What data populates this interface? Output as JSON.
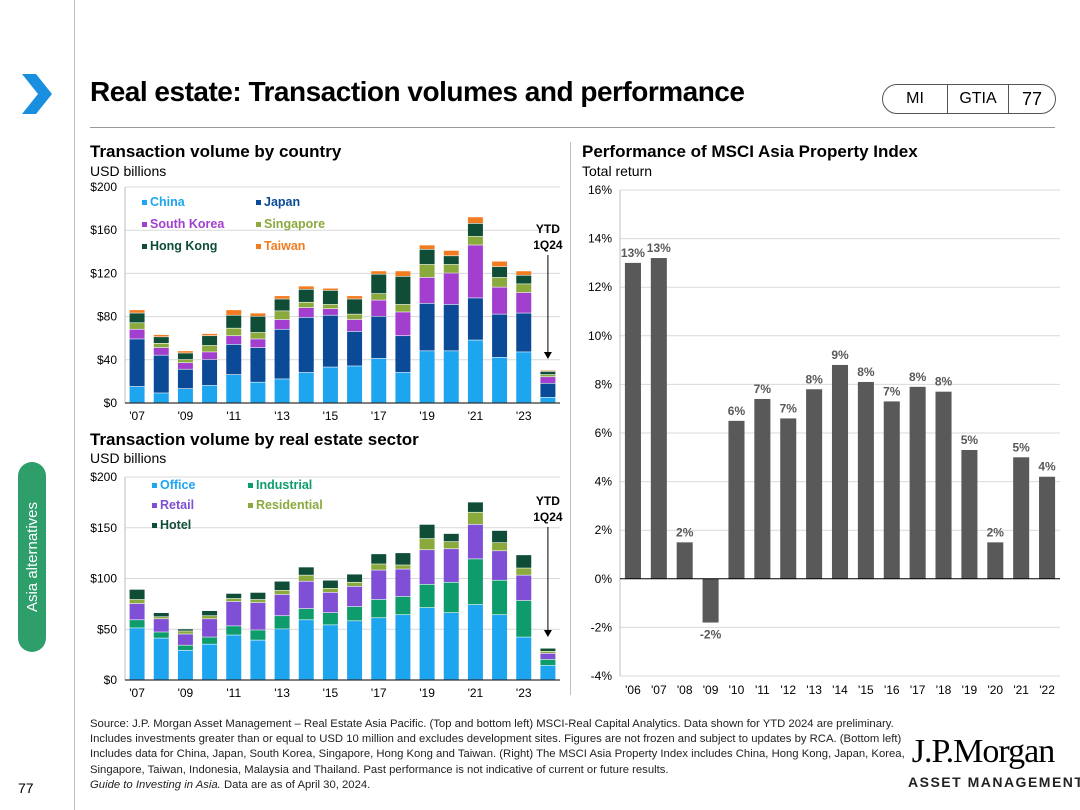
{
  "header": {
    "title": "Real estate: Transaction volumes and performance",
    "pill": [
      "MI",
      "GTIA",
      "77"
    ]
  },
  "sidebar": {
    "tab_label": "Asia alternatives",
    "page_number": "77"
  },
  "colors": {
    "china": "#1ea5f0",
    "japan": "#0b4a96",
    "south_korea": "#a33fcf",
    "singapore": "#8aaa3e",
    "hong_kong": "#0f4d36",
    "taiwan": "#f47c20",
    "office": "#1ea5f0",
    "industrial": "#0e9c6c",
    "retail": "#7f4fd6",
    "residential": "#8aaa3e",
    "hotel": "#0f4d36",
    "msci_bar": "#595959"
  },
  "chart_data": [
    {
      "id": "by_country",
      "type": "bar",
      "stacked": true,
      "title": "Transaction volume by country",
      "subtitle": "USD billions",
      "ylim": [
        0,
        200
      ],
      "yticks": [
        "$0",
        "$40",
        "$80",
        "$120",
        "$160",
        "$200"
      ],
      "ytick_values": [
        0,
        40,
        80,
        120,
        160,
        200
      ],
      "categories": [
        "'07",
        "'08",
        "'09",
        "'10",
        "'11",
        "'12",
        "'13",
        "'14",
        "'15",
        "'16",
        "'17",
        "'18",
        "'19",
        "'20",
        "'21",
        "'22",
        "'23",
        "YTD 1Q24"
      ],
      "xtick_labels": [
        "'07",
        "",
        "'09",
        "",
        "'11",
        "",
        "'13",
        "",
        "'15",
        "",
        "'17",
        "",
        "'19",
        "",
        "'21",
        "",
        "'23",
        ""
      ],
      "annotation": {
        "text_lines": [
          "YTD",
          "1Q24"
        ]
      },
      "series": [
        {
          "name": "China",
          "color_key": "china",
          "values": [
            15,
            9,
            13,
            16,
            26,
            19,
            22,
            28,
            33,
            34,
            41,
            28,
            48,
            48,
            58,
            42,
            47,
            5
          ]
        },
        {
          "name": "Japan",
          "color_key": "japan",
          "values": [
            44,
            35,
            18,
            24,
            28,
            32,
            46,
            51,
            48,
            32,
            39,
            34,
            44,
            43,
            39,
            40,
            36,
            13
          ]
        },
        {
          "name": "South Korea",
          "color_key": "south_korea",
          "values": [
            9,
            7,
            6,
            7,
            8,
            8,
            9,
            9,
            6,
            11,
            15,
            22,
            24,
            29,
            49,
            25,
            19,
            6
          ]
        },
        {
          "name": "Singapore",
          "color_key": "singapore",
          "values": [
            6,
            4,
            3,
            6,
            7,
            6,
            8,
            5,
            4,
            5,
            6,
            7,
            12,
            8,
            8,
            9,
            8,
            2
          ]
        },
        {
          "name": "Hong Kong",
          "color_key": "hong_kong",
          "values": [
            9,
            6,
            6,
            9,
            12,
            15,
            11,
            12,
            13,
            14,
            18,
            26,
            14,
            8,
            12,
            10,
            8,
            3
          ]
        },
        {
          "name": "Taiwan",
          "color_key": "taiwan",
          "values": [
            3,
            2,
            2,
            2,
            5,
            3,
            3,
            3,
            2,
            3,
            3,
            5,
            4,
            5,
            6,
            5,
            4,
            1
          ]
        }
      ]
    },
    {
      "id": "by_sector",
      "type": "bar",
      "stacked": true,
      "title": "Transaction volume by real estate sector",
      "subtitle": "USD billions",
      "ylim": [
        0,
        200
      ],
      "yticks": [
        "$0",
        "$50",
        "$100",
        "$150",
        "$200"
      ],
      "ytick_values": [
        0,
        50,
        100,
        150,
        200
      ],
      "categories": [
        "'07",
        "'08",
        "'09",
        "'10",
        "'11",
        "'12",
        "'13",
        "'14",
        "'15",
        "'16",
        "'17",
        "'18",
        "'19",
        "'20",
        "'21",
        "'22",
        "'23",
        "YTD 1Q24"
      ],
      "xtick_labels": [
        "'07",
        "",
        "'09",
        "",
        "'11",
        "",
        "'13",
        "",
        "'15",
        "",
        "'17",
        "",
        "'19",
        "",
        "'21",
        "",
        "'23",
        ""
      ],
      "annotation": {
        "text_lines": [
          "YTD",
          "1Q24"
        ]
      },
      "series": [
        {
          "name": "Office",
          "color_key": "office",
          "values": [
            51,
            41,
            29,
            35,
            44,
            39,
            50,
            59,
            54,
            58,
            61,
            64,
            71,
            66,
            74,
            64,
            42,
            14
          ]
        },
        {
          "name": "Industrial",
          "color_key": "industrial",
          "values": [
            8,
            6,
            5,
            7,
            9,
            10,
            13,
            11,
            12,
            14,
            18,
            18,
            23,
            30,
            45,
            34,
            36,
            6
          ]
        },
        {
          "name": "Retail",
          "color_key": "retail",
          "values": [
            16,
            13,
            11,
            18,
            24,
            27,
            21,
            27,
            20,
            20,
            29,
            27,
            34,
            33,
            34,
            29,
            25,
            6
          ]
        },
        {
          "name": "Residential",
          "color_key": "residential",
          "values": [
            4,
            2,
            3,
            3,
            3,
            3,
            4,
            6,
            4,
            4,
            6,
            4,
            11,
            7,
            12,
            8,
            7,
            2
          ]
        },
        {
          "name": "Hotel",
          "color_key": "hotel",
          "values": [
            10,
            4,
            2,
            5,
            5,
            7,
            9,
            8,
            8,
            8,
            10,
            12,
            14,
            8,
            10,
            12,
            13,
            3
          ]
        }
      ]
    },
    {
      "id": "msci_asia",
      "type": "bar",
      "title": "Performance of MSCI Asia Property Index",
      "subtitle": "Total return",
      "ylim": [
        -4,
        16
      ],
      "yticks": [
        "-4%",
        "-2%",
        "0%",
        "2%",
        "4%",
        "6%",
        "8%",
        "10%",
        "12%",
        "14%",
        "16%"
      ],
      "ytick_values": [
        -4,
        -2,
        0,
        2,
        4,
        6,
        8,
        10,
        12,
        14,
        16
      ],
      "categories": [
        "'06",
        "'07",
        "'08",
        "'09",
        "'10",
        "'11",
        "'12",
        "'13",
        "'14",
        "'15",
        "'16",
        "'17",
        "'18",
        "'19",
        "'20",
        "'21",
        "'22"
      ],
      "values": [
        13.0,
        13.2,
        1.5,
        -1.8,
        6.5,
        7.4,
        6.6,
        7.8,
        8.8,
        8.1,
        7.3,
        7.9,
        7.7,
        5.3,
        1.5,
        5.0,
        4.2
      ],
      "data_labels": [
        "13%",
        "13%",
        "2%",
        "-2%",
        "6%",
        "7%",
        "7%",
        "8%",
        "9%",
        "8%",
        "7%",
        "8%",
        "8%",
        "5%",
        "2%",
        "5%",
        "4%"
      ]
    }
  ],
  "footer": {
    "source": "Source: J.P. Morgan Asset Management – Real Estate Asia Pacific. (Top and bottom left) MSCI-Real Capital Analytics. Data shown for YTD 2024 are preliminary. Includes investments greater than or equal to USD 10 million and excludes development sites. Figures are not frozen and subject to updates by RCA. (Bottom left) Includes data for China, Japan, South Korea, Singapore, Hong Kong and Taiwan. (Right) The MSCI Asia Property Index includes China, Hong Kong, Japan, Korea, Singapore, Taiwan, Indonesia, Malaysia and Thailand. Past performance is not indicative of current or future results.",
    "guide_title": "Guide to Investing in Asia.",
    "date_note": " Data are as of April 30, 2024.",
    "logo_main": "J.P.Morgan",
    "logo_sub": "ASSET MANAGEMENT"
  }
}
